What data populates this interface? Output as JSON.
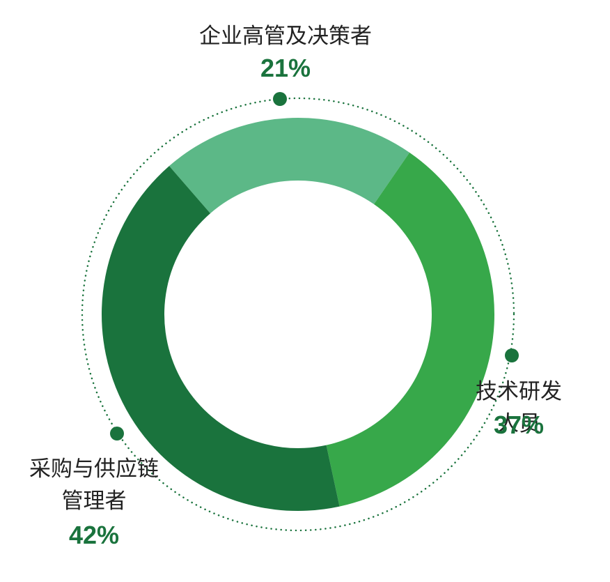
{
  "chart_data": {
    "type": "donut",
    "categories": [
      "企业高管及决策者",
      "技术研发人员",
      "采购与供应链\n管理者"
    ],
    "values": [
      21,
      37,
      42
    ],
    "value_labels": [
      "21%",
      "37%",
      "42%"
    ],
    "colors": [
      "#5cb887",
      "#37a84a",
      "#1a733d"
    ]
  }
}
